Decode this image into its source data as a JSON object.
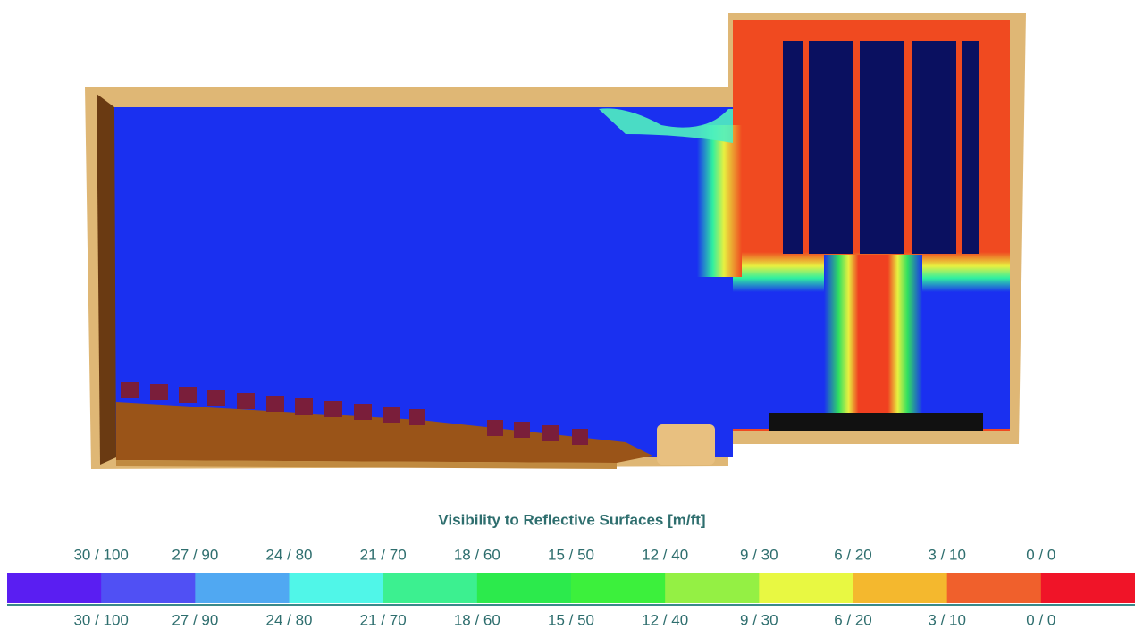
{
  "legend": {
    "title": "Visibility to Reflective Surfaces [m/ft]",
    "labels": [
      "30 / 100",
      "27 / 90",
      "24 / 80",
      "21 / 70",
      "18 / 60",
      "15 / 50",
      "12 / 40",
      "9 / 30",
      "6 / 20",
      "3 / 10",
      "0 / 0"
    ],
    "colors": [
      "#5a1ef2",
      "#5050f4",
      "#50a8f2",
      "#50f6e8",
      "#3cf090",
      "#2cea4c",
      "#3cf03c",
      "#94f044",
      "#e8f842",
      "#f4b82e",
      "#f0602c",
      "#f01428"
    ]
  }
}
